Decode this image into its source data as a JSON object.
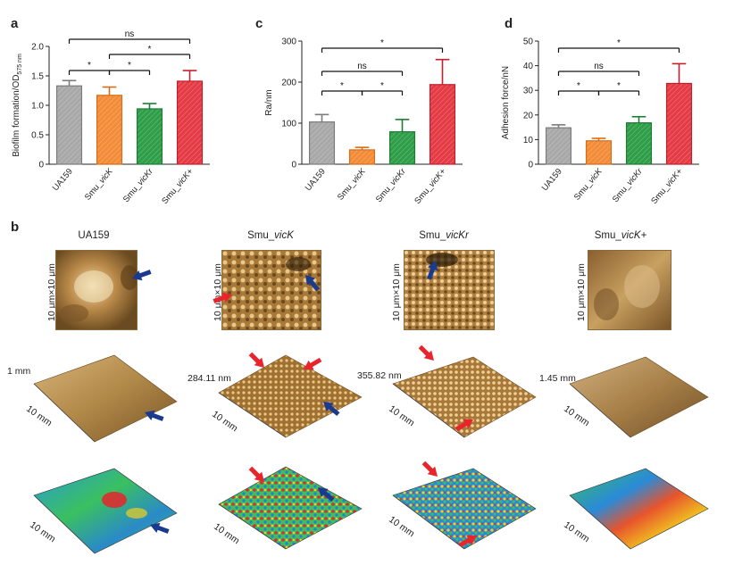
{
  "panels": {
    "a": {
      "letter": "a"
    },
    "b": {
      "letter": "b"
    },
    "c": {
      "letter": "c"
    },
    "d": {
      "letter": "d"
    }
  },
  "chart_data": [
    {
      "id": "a",
      "type": "bar",
      "ylabel_main": "Biofilm formation/OD",
      "ylabel_sub": "575 nm",
      "ylim": [
        0,
        2.0
      ],
      "yticks": [
        "0",
        "0.5",
        "1.0",
        "1.5",
        "2.0"
      ],
      "tickvals": [
        0,
        0.5,
        1.0,
        1.5,
        2.0
      ],
      "categories": [
        "UA159",
        "Smu_vicK",
        "Smu_vicKr",
        "Smu_vicK+"
      ],
      "category_prefix": [
        "UA159",
        "Smu_",
        "Smu_",
        "Smu_"
      ],
      "category_italic": [
        "",
        "vicK",
        "vicKr",
        "vicK+"
      ],
      "values": [
        1.33,
        1.17,
        0.94,
        1.41
      ],
      "errors": [
        0.09,
        0.14,
        0.09,
        0.18
      ],
      "sig": [
        {
          "from": 0,
          "to": 3,
          "label": "ns"
        },
        {
          "from": 1,
          "to": 3,
          "label": "*"
        },
        {
          "from": 0,
          "to": 1,
          "label": "*"
        },
        {
          "from": 1,
          "to": 2,
          "label": "*"
        }
      ]
    },
    {
      "id": "c",
      "type": "bar",
      "ylabel_main": "Ra/nm",
      "ylabel_sub": "",
      "ylim": [
        0,
        300
      ],
      "yticks": [
        "0",
        "100",
        "200",
        "300"
      ],
      "tickvals": [
        0,
        100,
        200,
        300
      ],
      "categories": [
        "UA159",
        "Smu_vicK",
        "Smu_vicKr",
        "Smu_vicK+"
      ],
      "category_prefix": [
        "UA159",
        "Smu_",
        "Smu_",
        "Smu_"
      ],
      "category_italic": [
        "",
        "vicK",
        "vicKr",
        "vicK+"
      ],
      "values": [
        103,
        35,
        79,
        194
      ],
      "errors": [
        18,
        6,
        30,
        61
      ],
      "sig": [
        {
          "from": 0,
          "to": 3,
          "label": "*"
        },
        {
          "from": 0,
          "to": 2,
          "label": "ns"
        },
        {
          "from": 0,
          "to": 1,
          "label": "*"
        },
        {
          "from": 1,
          "to": 2,
          "label": "*"
        }
      ]
    },
    {
      "id": "d",
      "type": "bar",
      "ylabel_main": "Adhesion force/nN",
      "ylabel_sub": "",
      "ylim": [
        0,
        50
      ],
      "yticks": [
        "0",
        "10",
        "20",
        "30",
        "40",
        "50"
      ],
      "tickvals": [
        0,
        10,
        20,
        30,
        40,
        50
      ],
      "categories": [
        "UA159",
        "Smu_vicK",
        "Smu_vicKr",
        "Smu_vicK+"
      ],
      "category_prefix": [
        "UA159",
        "Smu_",
        "Smu_",
        "Smu_"
      ],
      "category_italic": [
        "",
        "vicK",
        "vicKr",
        "vicK+"
      ],
      "values": [
        14.8,
        9.5,
        16.8,
        32.8
      ],
      "errors": [
        1.2,
        1.0,
        2.5,
        8.0
      ],
      "sig": [
        {
          "from": 0,
          "to": 3,
          "label": "*"
        },
        {
          "from": 0,
          "to": 2,
          "label": "ns"
        },
        {
          "from": 0,
          "to": 1,
          "label": "*"
        },
        {
          "from": 1,
          "to": 2,
          "label": "*"
        }
      ]
    }
  ],
  "bar_colors": [
    "#a8a8a8",
    "#f28c38",
    "#2e9e48",
    "#e53b45"
  ],
  "bar_edges": [
    "#7c7c7c",
    "#d86c18",
    "#1c7c32",
    "#c4202c"
  ],
  "afm": {
    "columns": [
      {
        "prefix": "UA159",
        "italic": "",
        "scale": "10 μm×10 μm",
        "height": "1 mm",
        "length": "10 mm"
      },
      {
        "prefix": "Smu_",
        "italic": "vicK",
        "scale": "10 μm×10 μm",
        "height": "284.11 nm",
        "length": "10 mm"
      },
      {
        "prefix": "Smu_",
        "italic": "vicKr",
        "scale": "10 μm×10 μm",
        "height": "355.82 nm",
        "length": "10 mm"
      },
      {
        "prefix": "Smu_",
        "italic": "vicK+",
        "scale": "10 μm×10 μm",
        "height": "1.45 mm",
        "length": "10 mm"
      }
    ],
    "arrow_colors": {
      "blue": "#1a3a8f",
      "red": "#e8242c"
    }
  }
}
